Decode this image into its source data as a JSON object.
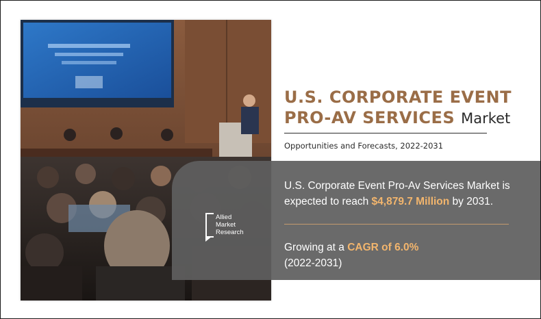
{
  "title": {
    "line1": "U.S. CORPORATE EVENT",
    "line2": "PRO-AV SERVICES",
    "suffix": "Market"
  },
  "subtitle": "Opportunities and Forecasts, 2022-2031",
  "market_statement": {
    "prefix": "U.S. Corporate Event Pro-Av Services Market is expected to reach ",
    "value": "$4,879.7 Million",
    "suffix": " by 2031."
  },
  "growth_statement": {
    "prefix": "Growing at a ",
    "value": "CAGR of 6.0%",
    "period": "(2022-2031)"
  },
  "logo": {
    "line1": "Allied",
    "line2": "Market",
    "line3": "Research"
  },
  "colors": {
    "title": "#9a6d47",
    "highlight": "#f2b56d",
    "panel": "#5f5f5f",
    "rule": "#c59a6e"
  },
  "image": {
    "subject": "conference-audience-photo"
  }
}
